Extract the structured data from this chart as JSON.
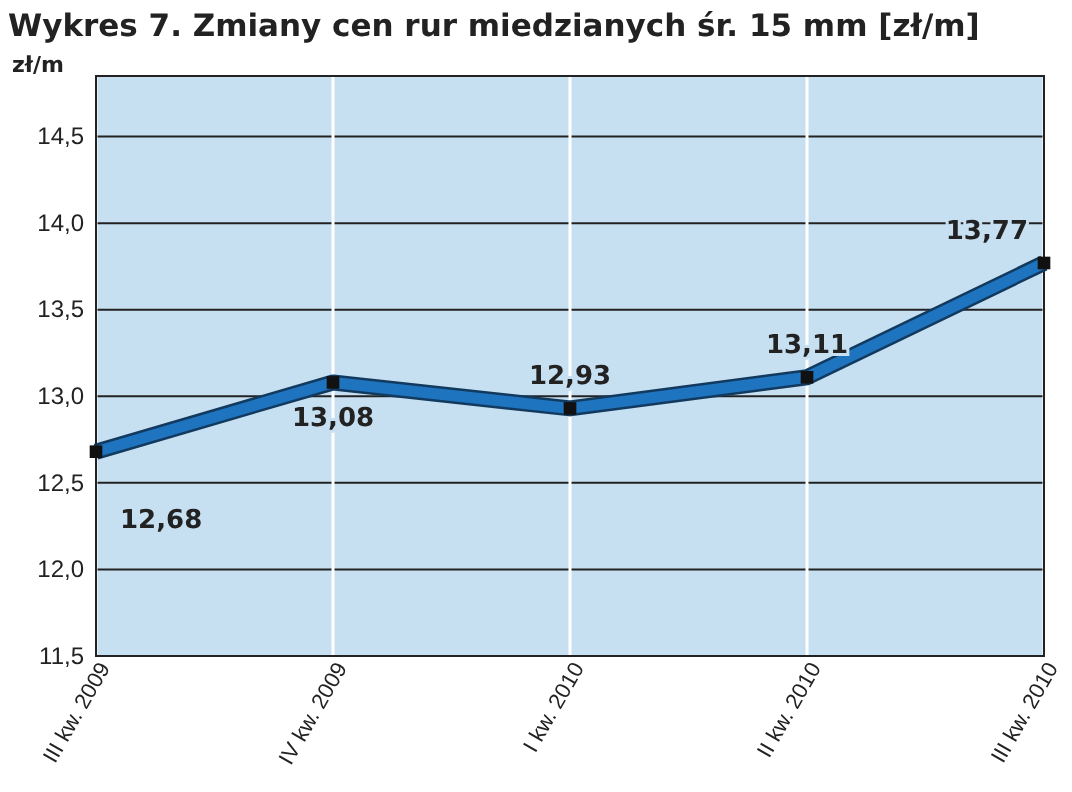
{
  "chart_data": {
    "type": "line",
    "title": "Wykres 7. Zmiany cen rur miedzianych śr. 15 mm [zł/m]",
    "ylabel": "zł/m",
    "categories": [
      "III kw. 2009",
      "IV kw. 2009",
      "I kw. 2010",
      "II kw. 2010",
      "III kw. 2010"
    ],
    "series": [
      {
        "color": "#1f74c0",
        "values": [
          12.68,
          13.08,
          12.93,
          13.11,
          13.77
        ],
        "value_labels": [
          "12,68",
          "13,08",
          "12,93",
          "13,11",
          "13,77"
        ]
      }
    ],
    "ylim": [
      11.5,
      14.85
    ],
    "yticks": [
      {
        "value": 11.5,
        "label": "11,5"
      },
      {
        "value": 12,
        "label": "12,0"
      },
      {
        "value": 12.5,
        "label": "12,5"
      },
      {
        "value": 13,
        "label": "13,0"
      },
      {
        "value": 13.5,
        "label": "13,5"
      },
      {
        "value": 14,
        "label": "14,0"
      },
      {
        "value": 14.5,
        "label": "14,5"
      }
    ],
    "grid": true,
    "marker": "square",
    "line_style": "solid"
  }
}
